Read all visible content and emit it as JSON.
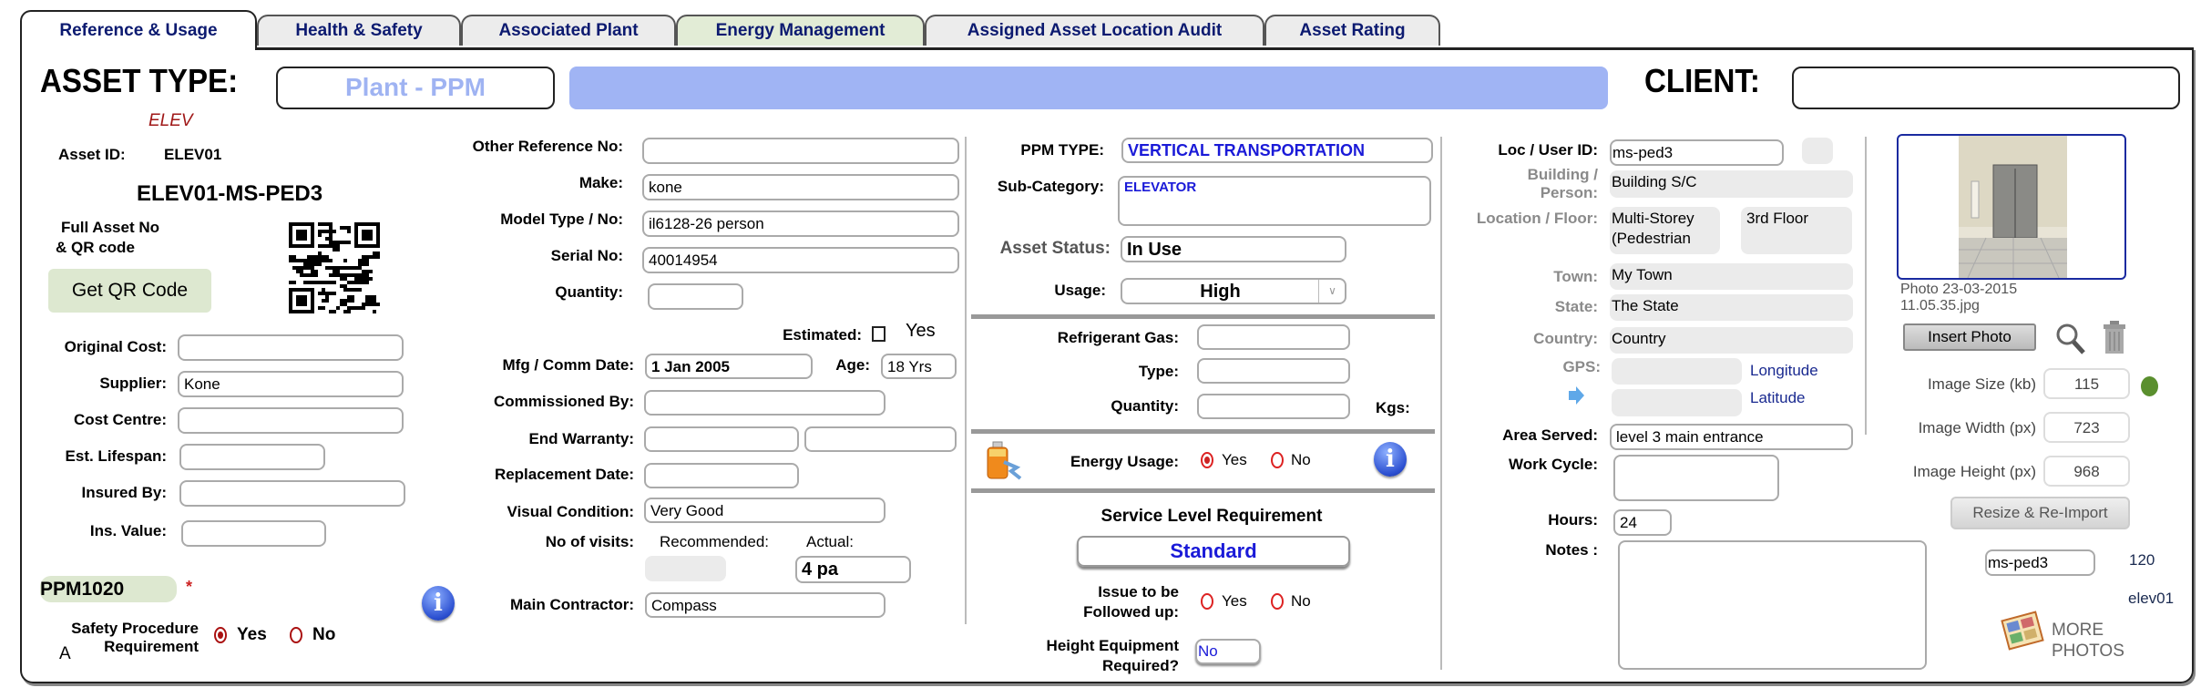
{
  "tabs": [
    {
      "label": "Reference & Usage"
    },
    {
      "label": "Health & Safety"
    },
    {
      "label": "Associated Plant"
    },
    {
      "label": "Energy Management"
    },
    {
      "label": "Assigned Asset Location Audit"
    },
    {
      "label": "Asset Rating"
    }
  ],
  "active_tab": "Reference & Usage",
  "header": {
    "asset_type_label": "ASSET TYPE:",
    "asset_type_value": "Plant - PPM",
    "asset_code": "ELEV",
    "client_label": "CLIENT:",
    "client_value": ""
  },
  "identity": {
    "asset_id_label": "Asset ID:",
    "asset_id": "ELEV01",
    "full_asset_no": "ELEV01-MS-PED3",
    "full_asset_label_1": "Full Asset No",
    "full_asset_label_2": "& QR code",
    "qr_button": "Get QR Code"
  },
  "finance": {
    "original_cost": {
      "label": "Original Cost:",
      "value": ""
    },
    "supplier": {
      "label": "Supplier:",
      "value": "Kone"
    },
    "cost_centre": {
      "label": "Cost Centre:",
      "value": ""
    },
    "est_lifespan": {
      "label": "Est. Lifespan:",
      "value": ""
    },
    "insured_by": {
      "label": "Insured By:",
      "value": ""
    },
    "ins_value": {
      "label": "Ins. Value:",
      "value": ""
    }
  },
  "ppm_code": {
    "value": "PPM1020",
    "required_mark": "*"
  },
  "safety_procedure": {
    "label_1": "Safety Procedure",
    "label_2": "Requirement",
    "prefix": "A",
    "yes": "Yes",
    "no": "No",
    "selected": "Yes"
  },
  "details": {
    "other_ref": {
      "label": "Other Reference No:",
      "value": ""
    },
    "make": {
      "label": "Make:",
      "value": "kone"
    },
    "model": {
      "label": "Model Type / No:",
      "value": "il6128-26 person"
    },
    "serial": {
      "label": "Serial No:",
      "value": "40014954"
    },
    "quantity": {
      "label": "Quantity:",
      "value": ""
    },
    "estimated": {
      "label": "Estimated:",
      "option": "Yes",
      "checked": false
    },
    "mfg_date": {
      "label": "Mfg / Comm Date:",
      "value": "1 Jan 2005"
    },
    "age": {
      "label": "Age:",
      "value": "18 Yrs"
    },
    "commissioned_by": {
      "label": "Commissioned By:",
      "value": ""
    },
    "end_warranty": {
      "label": "End Warranty:",
      "value_1": "",
      "value_2": ""
    },
    "replacement_date": {
      "label": "Replacement Date:",
      "value": ""
    },
    "visual_condition": {
      "label": "Visual Condition:",
      "value": "Very Good"
    },
    "visits": {
      "label": "No of visits:",
      "recommended_label": "Recommended:",
      "actual_label": "Actual:",
      "recommended": "",
      "actual": "4 pa"
    },
    "main_contractor": {
      "label": "Main Contractor:",
      "value": "Compass"
    }
  },
  "ppm": {
    "type": {
      "label": "PPM TYPE:",
      "value": "VERTICAL TRANSPORTATION"
    },
    "sub_category": {
      "label": "Sub-Category:",
      "value": "ELEVATOR"
    },
    "asset_status": {
      "label": "Asset Status:",
      "value": "In Use"
    },
    "usage": {
      "label": "Usage:",
      "value": "High"
    },
    "refrigerant_gas": {
      "label": "Refrigerant Gas:",
      "value": ""
    },
    "refrigerant_type": {
      "label": "Type:",
      "value": ""
    },
    "refrigerant_qty": {
      "label": "Quantity:",
      "value": "",
      "unit": "Kgs:"
    },
    "energy_usage": {
      "label": "Energy Usage:",
      "yes": "Yes",
      "no": "No",
      "selected": "Yes"
    },
    "service_level": {
      "label": "Service Level Requirement",
      "value": "Standard"
    },
    "issue_followup": {
      "label_1": "Issue to be",
      "label_2": "Followed up:",
      "yes": "Yes",
      "no": "No",
      "selected": null
    },
    "height_equipment": {
      "label_1": "Height Equipment",
      "label_2": "Required?",
      "value": "No"
    }
  },
  "location": {
    "loc_user_id": {
      "label": "Loc / User ID:",
      "value": "ms-ped3"
    },
    "building": {
      "label_1": "Building /",
      "label_2": "Person:",
      "value": "Building S/C"
    },
    "location_floor": {
      "label": "Location / Floor:",
      "location": "Multi-Storey (Pedestrian",
      "floor": "3rd Floor"
    },
    "town": {
      "label": "Town:",
      "value": "My Town"
    },
    "state": {
      "label": "State:",
      "value": "The State"
    },
    "country": {
      "label": "Country:",
      "value": "Country"
    },
    "gps": {
      "label": "GPS:",
      "longitude_label": "Longitude",
      "latitude_label": "Latitude",
      "longitude": "",
      "latitude": ""
    },
    "area_served": {
      "label": "Area Served:",
      "value": "level 3 main entrance"
    },
    "work_cycle": {
      "label": "Work Cycle:",
      "value": ""
    },
    "hours": {
      "label": "Hours:",
      "value": "24"
    },
    "notes": {
      "label": "Notes :",
      "value": ""
    }
  },
  "photo": {
    "caption": "Photo 23-03-2015 11.05.35.jpg",
    "insert_button": "Insert Photo",
    "image_size": {
      "label": "Image Size (kb)",
      "value": "115",
      "status_color": "#5a8f2e"
    },
    "image_width": {
      "label": "Image Width (px)",
      "value": "723"
    },
    "image_height": {
      "label": "Image Height (px)",
      "value": "968"
    },
    "resize_button": "Resize & Re-Import",
    "photo_ref": "ms-ped3",
    "photo_count": "120",
    "asset_ref": "elev01",
    "more_photos": "MORE PHOTOS"
  },
  "colors": {
    "tab_text": "#0c1a70",
    "banner": "#a0b4f4",
    "asset_type_text": "#9fb3f2",
    "asset_code": "#a01818",
    "ppm_value": "#1a1ad8",
    "qr_button_bg": "#dde8d0"
  }
}
